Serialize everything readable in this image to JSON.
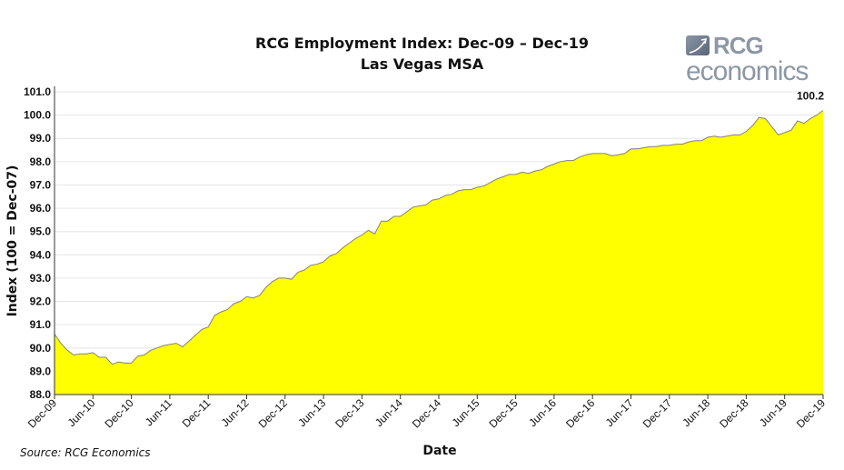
{
  "chart_data": {
    "type": "area",
    "title": "RCG Employment Index: Dec-09 – Dec-19",
    "subtitle": "Las Vegas MSA",
    "xlabel": "Date",
    "ylabel": "Index (100 = Dec-07)",
    "ylim": [
      88.0,
      101.0
    ],
    "yticks": [
      "88.0",
      "89.0",
      "90.0",
      "91.0",
      "92.0",
      "93.0",
      "94.0",
      "95.0",
      "96.0",
      "97.0",
      "98.0",
      "99.0",
      "100.0",
      "101.0"
    ],
    "xticks": [
      "Dec-09",
      "Jun-10",
      "Dec-10",
      "Jun-11",
      "Dec-11",
      "Jun-12",
      "Dec-12",
      "Jun-13",
      "Dec-13",
      "Jun-14",
      "Dec-14",
      "Jun-15",
      "Dec-15",
      "Jun-16",
      "Dec-16",
      "Jun-17",
      "Dec-17",
      "Jun-18",
      "Dec-18",
      "Jun-19",
      "Dec-19"
    ],
    "grid": true,
    "fill_color": "#ffff00",
    "line_color": "#808080",
    "x_start": "Dec-09",
    "x_end": "Dec-19",
    "frequency": "monthly",
    "values": [
      90.6,
      90.2,
      89.9,
      89.7,
      89.75,
      89.75,
      89.8,
      89.6,
      89.6,
      89.3,
      89.4,
      89.35,
      89.35,
      89.65,
      89.7,
      89.9,
      90.0,
      90.1,
      90.15,
      90.2,
      90.05,
      90.3,
      90.55,
      90.8,
      90.9,
      91.4,
      91.55,
      91.65,
      91.9,
      92.0,
      92.2,
      92.15,
      92.25,
      92.6,
      92.85,
      93.0,
      93.0,
      92.95,
      93.25,
      93.35,
      93.55,
      93.6,
      93.7,
      93.95,
      94.05,
      94.3,
      94.5,
      94.7,
      94.85,
      95.05,
      94.9,
      95.45,
      95.45,
      95.65,
      95.65,
      95.85,
      96.05,
      96.1,
      96.15,
      96.35,
      96.4,
      96.55,
      96.6,
      96.75,
      96.8,
      96.8,
      96.9,
      96.95,
      97.1,
      97.25,
      97.35,
      97.45,
      97.45,
      97.55,
      97.5,
      97.6,
      97.65,
      97.8,
      97.9,
      98.0,
      98.05,
      98.05,
      98.2,
      98.3,
      98.35,
      98.35,
      98.35,
      98.25,
      98.3,
      98.35,
      98.55,
      98.55,
      98.6,
      98.65,
      98.65,
      98.7,
      98.7,
      98.75,
      98.75,
      98.85,
      98.9,
      98.9,
      99.05,
      99.1,
      99.05,
      99.1,
      99.15,
      99.15,
      99.3,
      99.55,
      99.9,
      99.85,
      99.5,
      99.15,
      99.25,
      99.35,
      99.75,
      99.65,
      99.85,
      100.0,
      100.2
    ],
    "annotation": "100.2"
  },
  "source": "Source: RCG Economics",
  "logo": {
    "line1": "RCG",
    "line2": "economics"
  }
}
